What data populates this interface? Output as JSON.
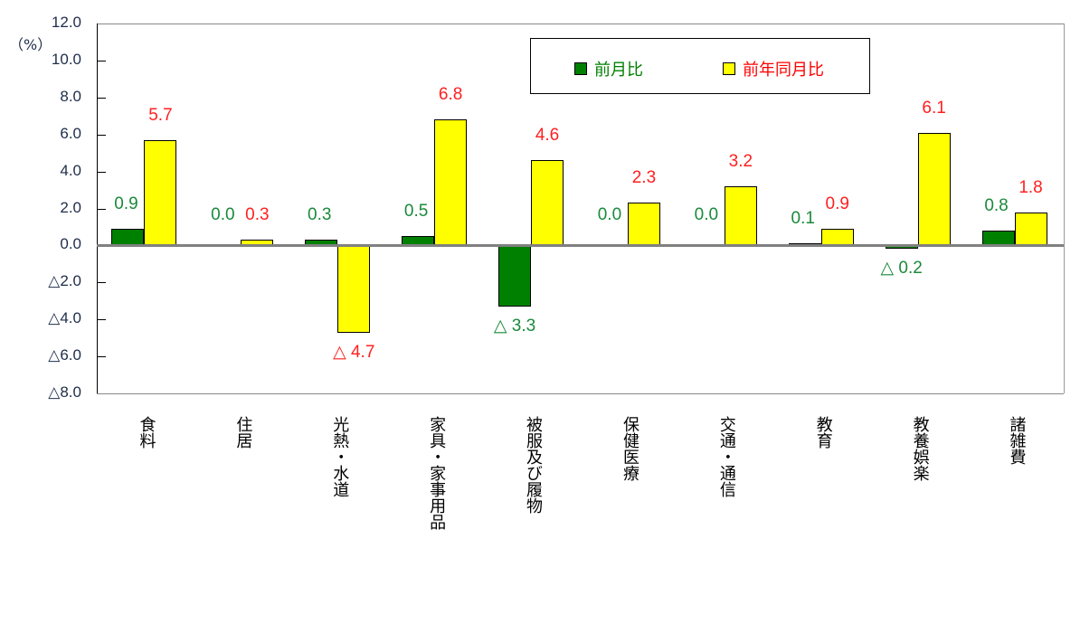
{
  "chart_data": {
    "type": "bar",
    "title": "",
    "xlabel": "",
    "ylabel": "（%）",
    "ylim": [
      -8.0,
      12.0
    ],
    "y_ticks": [
      "12.0",
      "10.0",
      "8.0",
      "6.0",
      "4.0",
      "2.0",
      "0.0",
      "△2.0",
      "△4.0",
      "△6.0",
      "△8.0"
    ],
    "grid": false,
    "legend_position": "top-right-inside",
    "categories": [
      "食料",
      "住居",
      "光熱・水道",
      "家具・家事用品",
      "被服及び履物",
      "保健医療",
      "交通・通信",
      "教育",
      "教養娯楽",
      "諸雑費"
    ],
    "series": [
      {
        "name": "前月比",
        "color": "#008000",
        "values": [
          0.9,
          0.0,
          0.3,
          0.5,
          -3.3,
          0.0,
          0.0,
          0.1,
          -0.2,
          0.8
        ],
        "labels": [
          "0.9",
          "0.0",
          "0.3",
          "0.5",
          "△ 3.3",
          "0.0",
          "0.0",
          "0.1",
          "△ 0.2",
          "0.8"
        ]
      },
      {
        "name": "前年同月比",
        "color": "#ffff00",
        "values": [
          5.7,
          0.3,
          -4.7,
          6.8,
          4.6,
          2.3,
          3.2,
          0.9,
          6.1,
          1.8
        ],
        "labels": [
          "5.7",
          "0.3",
          "△ 4.7",
          "6.8",
          "4.6",
          "2.3",
          "3.2",
          "0.9",
          "6.1",
          "1.8"
        ]
      }
    ]
  },
  "axis": {
    "unit_label": "（%）"
  },
  "legend": {
    "items": [
      {
        "label": "前月比",
        "color": "#008000",
        "text_color": "#008000"
      },
      {
        "label": "前年同月比",
        "color": "#ffff00",
        "text_color": "#ff0000"
      }
    ]
  }
}
